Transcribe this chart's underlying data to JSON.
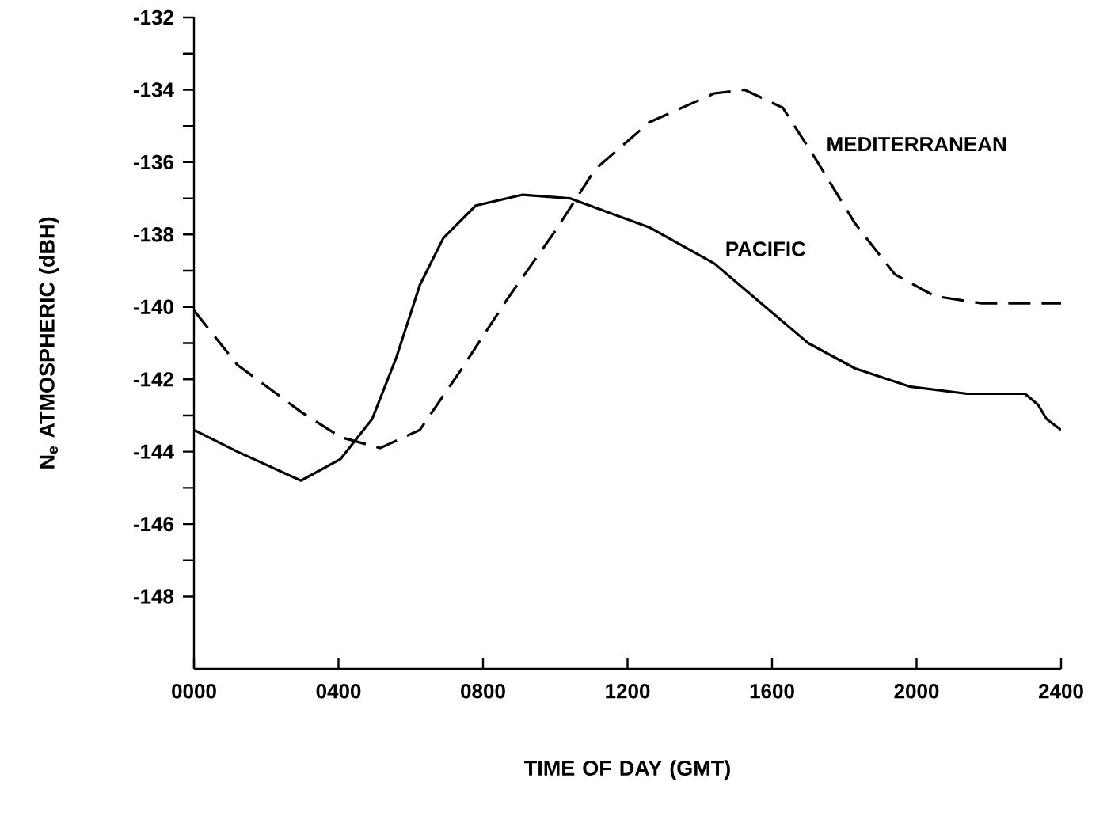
{
  "chart_data": {
    "type": "line",
    "xlabel": "TIME OF DAY (GMT)",
    "ylabel": "N$_{e}$ ATMOSPHERIC (dBH)",
    "xlim": [
      0,
      2400
    ],
    "xticks": [
      {
        "value": 0,
        "label": "0000"
      },
      {
        "value": 400,
        "label": "0400"
      },
      {
        "value": 800,
        "label": "0800"
      },
      1200,
      1600,
      2000,
      2400
    ],
    "ylim": [
      -150,
      -132
    ],
    "yticks": [
      -148,
      {
        "value": -147,
        "label": null
      },
      -146,
      {
        "value": -145,
        "label": null
      },
      -144,
      {
        "value": -143,
        "label": null
      },
      -142,
      {
        "value": -141,
        "label": null
      },
      -140,
      {
        "value": -139,
        "label": null
      },
      -138,
      {
        "value": -137,
        "label": null
      },
      -136,
      {
        "value": -135,
        "label": null
      },
      -134,
      {
        "value": -133,
        "label": null
      },
      -132
    ],
    "grid": false,
    "legend": false,
    "marker": "none",
    "series": [
      {
        "name": "PACIFIC",
        "color": "#000000",
        "line_style": "solid",
        "x": [
          0,
          120,
          296,
          406,
          493,
          560,
          625,
          690,
          780,
          910,
          1040,
          1260,
          1440,
          1570,
          1700,
          1830,
          1980,
          2140,
          2300,
          2336,
          2360,
          2400
        ],
        "values": [
          -143.4,
          -144.0,
          -144.8,
          -144.2,
          -143.1,
          -141.4,
          -139.4,
          -138.1,
          -137.2,
          -136.9,
          -137.0,
          -137.8,
          -138.8,
          -139.9,
          -141.0,
          -141.7,
          -142.2,
          -142.4,
          -142.4,
          -142.7,
          -143.1,
          -143.4
        ]
      },
      {
        "name": "MEDITERRANEAN",
        "color": "#000000",
        "line_style": "dashed",
        "x": [
          0,
          120,
          296,
          406,
          515,
          625,
          735,
          866,
          1000,
          1110,
          1260,
          1440,
          1524,
          1630,
          1720,
          1830,
          1940,
          2050,
          2180,
          2400
        ],
        "values": [
          -140.1,
          -141.6,
          -142.9,
          -143.6,
          -143.9,
          -143.4,
          -141.8,
          -139.8,
          -137.9,
          -136.2,
          -134.9,
          -134.1,
          -134.0,
          -134.5,
          -135.9,
          -137.7,
          -139.1,
          -139.7,
          -139.9,
          -139.9
        ]
      }
    ]
  }
}
